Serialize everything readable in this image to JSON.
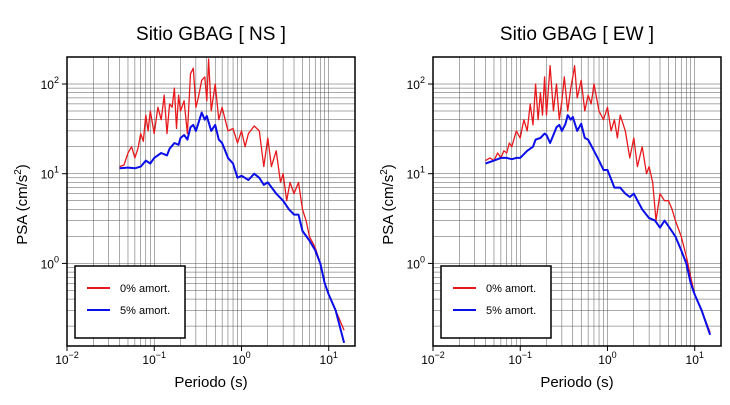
{
  "chart_data": [
    {
      "type": "line",
      "title": "Sitio GBAG [ NS ]",
      "xlabel": "Periodo (s)",
      "ylabel_main": "PSA (cm/s",
      "ylabel_sup": "2",
      "ylabel_end": ")",
      "x_scale": "log",
      "y_scale": "log",
      "xlim": [
        0.01,
        20
      ],
      "ylim": [
        0.12,
        200
      ],
      "x_ticks": [
        {
          "value": 0.01,
          "base": "10",
          "exp": "−2"
        },
        {
          "value": 0.1,
          "base": "10",
          "exp": "−1"
        },
        {
          "value": 1,
          "base": "10",
          "exp": "0"
        },
        {
          "value": 10,
          "base": "10",
          "exp": "1"
        }
      ],
      "y_ticks": [
        {
          "value": 1,
          "base": "10",
          "exp": "0"
        },
        {
          "value": 10,
          "base": "10",
          "exp": "1"
        },
        {
          "value": 100,
          "base": "10",
          "exp": "2"
        }
      ],
      "grid": true,
      "legend_position": "bottom-left",
      "series": [
        {
          "name": "0% amort.",
          "color": "#e8191c",
          "points": [
            [
              0.04,
              12
            ],
            [
              0.045,
              12.5
            ],
            [
              0.05,
              17
            ],
            [
              0.055,
              20
            ],
            [
              0.06,
              15
            ],
            [
              0.065,
              19
            ],
            [
              0.07,
              28
            ],
            [
              0.075,
              23
            ],
            [
              0.08,
              45
            ],
            [
              0.085,
              30
            ],
            [
              0.09,
              50
            ],
            [
              0.1,
              28
            ],
            [
              0.11,
              55
            ],
            [
              0.12,
              40
            ],
            [
              0.13,
              75
            ],
            [
              0.14,
              28
            ],
            [
              0.15,
              60
            ],
            [
              0.16,
              55
            ],
            [
              0.17,
              90
            ],
            [
              0.18,
              32
            ],
            [
              0.19,
              75
            ],
            [
              0.2,
              50
            ],
            [
              0.22,
              65
            ],
            [
              0.24,
              28
            ],
            [
              0.26,
              130
            ],
            [
              0.28,
              150
            ],
            [
              0.3,
              55
            ],
            [
              0.32,
              70
            ],
            [
              0.35,
              110
            ],
            [
              0.38,
              120
            ],
            [
              0.4,
              65
            ],
            [
              0.42,
              190
            ],
            [
              0.45,
              50
            ],
            [
              0.5,
              100
            ],
            [
              0.55,
              40
            ],
            [
              0.6,
              55
            ],
            [
              0.65,
              40
            ],
            [
              0.7,
              30
            ],
            [
              0.8,
              32
            ],
            [
              0.9,
              22
            ],
            [
              1.0,
              30
            ],
            [
              1.1,
              20
            ],
            [
              1.2,
              28
            ],
            [
              1.4,
              34
            ],
            [
              1.6,
              30
            ],
            [
              1.8,
              12
            ],
            [
              2.0,
              25
            ],
            [
              2.2,
              12
            ],
            [
              2.5,
              18
            ],
            [
              2.8,
              8
            ],
            [
              3.0,
              10
            ],
            [
              3.3,
              5
            ],
            [
              3.6,
              8
            ],
            [
              4.0,
              6
            ],
            [
              4.5,
              8
            ],
            [
              5.0,
              4
            ],
            [
              5.5,
              3
            ],
            [
              6.0,
              2
            ],
            [
              7.0,
              1.5
            ],
            [
              8.0,
              1
            ],
            [
              9.0,
              0.6
            ],
            [
              10,
              0.45
            ],
            [
              12,
              0.3
            ],
            [
              15,
              0.18
            ]
          ]
        },
        {
          "name": "5% amort.",
          "color": "#0a0ee8",
          "points": [
            [
              0.04,
              11.5
            ],
            [
              0.05,
              11.7
            ],
            [
              0.06,
              11.5
            ],
            [
              0.07,
              12
            ],
            [
              0.08,
              14
            ],
            [
              0.09,
              13
            ],
            [
              0.1,
              15
            ],
            [
              0.12,
              17
            ],
            [
              0.14,
              16
            ],
            [
              0.15,
              19
            ],
            [
              0.17,
              22
            ],
            [
              0.19,
              21
            ],
            [
              0.2,
              25
            ],
            [
              0.22,
              27
            ],
            [
              0.24,
              24
            ],
            [
              0.26,
              33
            ],
            [
              0.28,
              35
            ],
            [
              0.3,
              30
            ],
            [
              0.33,
              40
            ],
            [
              0.35,
              48
            ],
            [
              0.38,
              40
            ],
            [
              0.4,
              44
            ],
            [
              0.45,
              30
            ],
            [
              0.5,
              35
            ],
            [
              0.55,
              24
            ],
            [
              0.6,
              22
            ],
            [
              0.7,
              15
            ],
            [
              0.8,
              13
            ],
            [
              0.9,
              9
            ],
            [
              1.0,
              9.5
            ],
            [
              1.2,
              8.5
            ],
            [
              1.4,
              10
            ],
            [
              1.6,
              9
            ],
            [
              1.8,
              7.5
            ],
            [
              2.0,
              8
            ],
            [
              2.5,
              6
            ],
            [
              3.0,
              5
            ],
            [
              3.5,
              4
            ],
            [
              4.0,
              3.5
            ],
            [
              4.5,
              3.5
            ],
            [
              5.0,
              2.3
            ],
            [
              6.0,
              1.8
            ],
            [
              7.0,
              1.4
            ],
            [
              8.0,
              1
            ],
            [
              9.0,
              0.6
            ],
            [
              10,
              0.45
            ],
            [
              12,
              0.3
            ],
            [
              15,
              0.13
            ]
          ]
        }
      ]
    },
    {
      "type": "line",
      "title": "Sitio GBAG [ EW ]",
      "xlabel": "Periodo (s)",
      "ylabel_main": "PSA (cm/s",
      "ylabel_sup": "2",
      "ylabel_end": ")",
      "x_scale": "log",
      "y_scale": "log",
      "xlim": [
        0.01,
        20
      ],
      "ylim": [
        0.12,
        200
      ],
      "x_ticks": [
        {
          "value": 0.01,
          "base": "10",
          "exp": "−2"
        },
        {
          "value": 0.1,
          "base": "10",
          "exp": "−1"
        },
        {
          "value": 1,
          "base": "10",
          "exp": "0"
        },
        {
          "value": 10,
          "base": "10",
          "exp": "1"
        }
      ],
      "y_ticks": [
        {
          "value": 1,
          "base": "10",
          "exp": "0"
        },
        {
          "value": 10,
          "base": "10",
          "exp": "1"
        },
        {
          "value": 100,
          "base": "10",
          "exp": "2"
        }
      ],
      "grid": true,
      "legend_position": "bottom-left",
      "series": [
        {
          "name": "0% amort.",
          "color": "#e8191c",
          "points": [
            [
              0.04,
              14
            ],
            [
              0.045,
              15
            ],
            [
              0.05,
              14
            ],
            [
              0.055,
              17
            ],
            [
              0.06,
              15
            ],
            [
              0.065,
              18
            ],
            [
              0.07,
              17
            ],
            [
              0.075,
              22
            ],
            [
              0.08,
              20
            ],
            [
              0.09,
              30
            ],
            [
              0.1,
              25
            ],
            [
              0.11,
              40
            ],
            [
              0.12,
              30
            ],
            [
              0.13,
              60
            ],
            [
              0.14,
              35
            ],
            [
              0.15,
              100
            ],
            [
              0.16,
              40
            ],
            [
              0.17,
              80
            ],
            [
              0.18,
              45
            ],
            [
              0.19,
              120
            ],
            [
              0.2,
              45
            ],
            [
              0.22,
              160
            ],
            [
              0.24,
              50
            ],
            [
              0.26,
              100
            ],
            [
              0.28,
              40
            ],
            [
              0.3,
              65
            ],
            [
              0.32,
              120
            ],
            [
              0.35,
              50
            ],
            [
              0.38,
              90
            ],
            [
              0.4,
              120
            ],
            [
              0.42,
              160
            ],
            [
              0.45,
              70
            ],
            [
              0.5,
              110
            ],
            [
              0.55,
              50
            ],
            [
              0.6,
              75
            ],
            [
              0.65,
              60
            ],
            [
              0.7,
              100
            ],
            [
              0.8,
              50
            ],
            [
              0.9,
              40
            ],
            [
              1.0,
              55
            ],
            [
              1.1,
              30
            ],
            [
              1.2,
              40
            ],
            [
              1.3,
              25
            ],
            [
              1.4,
              45
            ],
            [
              1.6,
              30
            ],
            [
              1.8,
              15
            ],
            [
              2.0,
              25
            ],
            [
              2.2,
              12
            ],
            [
              2.5,
              20
            ],
            [
              2.8,
              10
            ],
            [
              3.0,
              12
            ],
            [
              3.3,
              8
            ],
            [
              3.6,
              3
            ],
            [
              4.0,
              6
            ],
            [
              4.5,
              5
            ],
            [
              5.0,
              5
            ],
            [
              5.5,
              4
            ],
            [
              6.0,
              3
            ],
            [
              7.0,
              2
            ],
            [
              8.0,
              1.2
            ],
            [
              9.0,
              0.7
            ],
            [
              10,
              0.45
            ],
            [
              12,
              0.3
            ],
            [
              15,
              0.17
            ]
          ]
        },
        {
          "name": "5% amort.",
          "color": "#0a0ee8",
          "points": [
            [
              0.04,
              13
            ],
            [
              0.05,
              14
            ],
            [
              0.06,
              15
            ],
            [
              0.07,
              15
            ],
            [
              0.08,
              14.5
            ],
            [
              0.09,
              15
            ],
            [
              0.1,
              15
            ],
            [
              0.12,
              18
            ],
            [
              0.14,
              20
            ],
            [
              0.15,
              24
            ],
            [
              0.17,
              25
            ],
            [
              0.19,
              28
            ],
            [
              0.2,
              27
            ],
            [
              0.22,
              22
            ],
            [
              0.24,
              27
            ],
            [
              0.26,
              33
            ],
            [
              0.28,
              35
            ],
            [
              0.3,
              30
            ],
            [
              0.33,
              36
            ],
            [
              0.35,
              45
            ],
            [
              0.38,
              40
            ],
            [
              0.4,
              43
            ],
            [
              0.45,
              30
            ],
            [
              0.5,
              36
            ],
            [
              0.55,
              25
            ],
            [
              0.6,
              24
            ],
            [
              0.7,
              18
            ],
            [
              0.8,
              14
            ],
            [
              0.9,
              11
            ],
            [
              1.0,
              11
            ],
            [
              1.2,
              7
            ],
            [
              1.4,
              7
            ],
            [
              1.6,
              6
            ],
            [
              1.8,
              5.5
            ],
            [
              2.0,
              6
            ],
            [
              2.5,
              4
            ],
            [
              3.0,
              3.2
            ],
            [
              3.5,
              3
            ],
            [
              4.0,
              2.5
            ],
            [
              4.5,
              3
            ],
            [
              5.0,
              2.6
            ],
            [
              6.0,
              2
            ],
            [
              7.0,
              1.4
            ],
            [
              8.0,
              1
            ],
            [
              9.0,
              0.6
            ],
            [
              10,
              0.45
            ],
            [
              12,
              0.3
            ],
            [
              15,
              0.16
            ]
          ]
        }
      ]
    }
  ]
}
